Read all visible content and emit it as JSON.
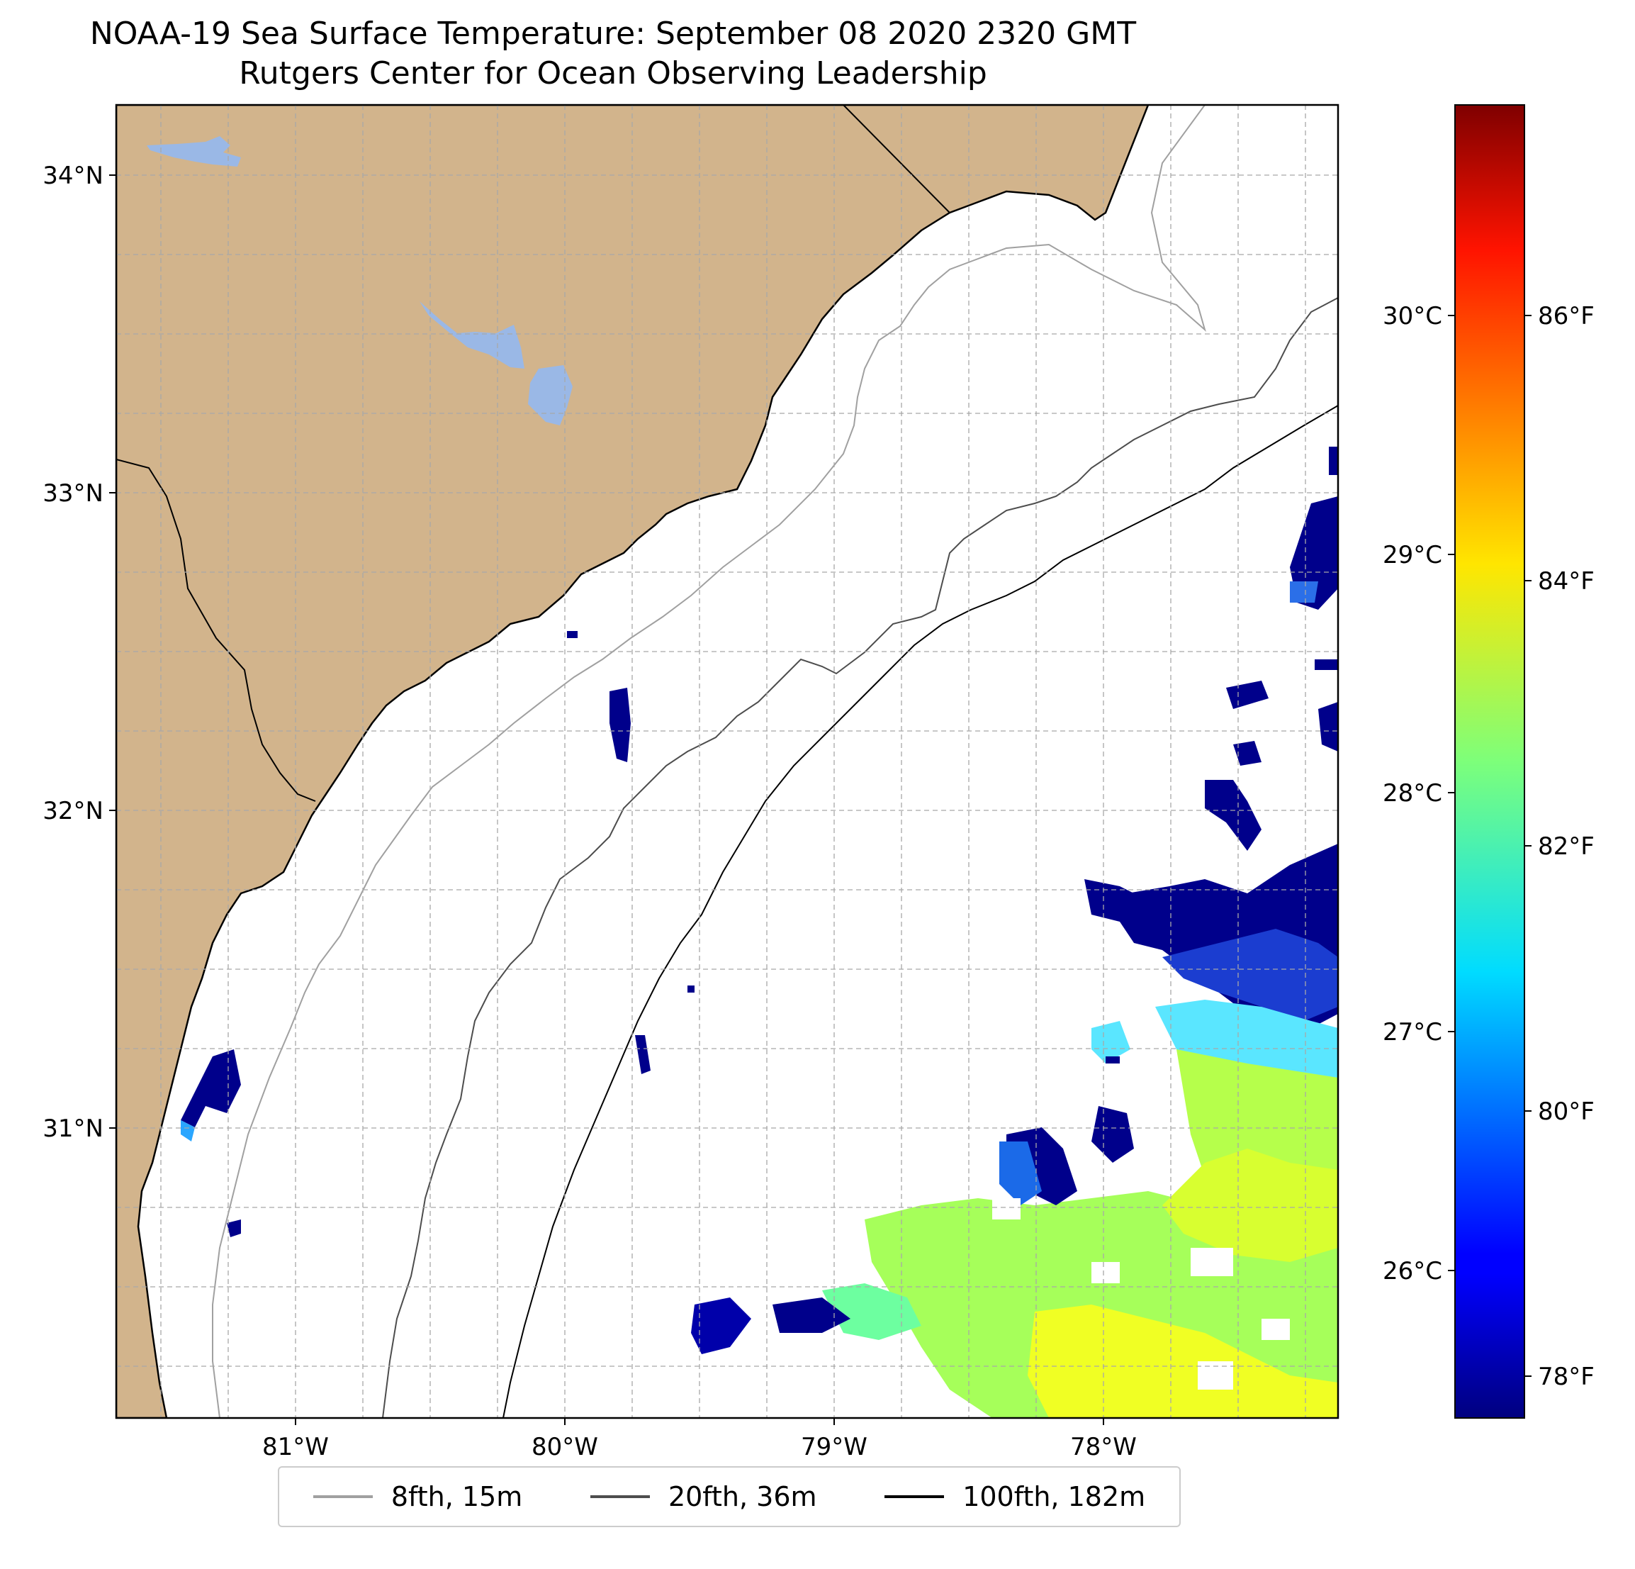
{
  "title": "NOAA-19 Sea Surface Temperature: September 08 2020 2320 GMT",
  "subtitle": "Rutgers Center for Ocean Observing Leadership",
  "map": {
    "lon_range": [
      -81.67,
      -77.1
    ],
    "lat_range": [
      30.07,
      34.22
    ],
    "land_color": "#d2b48c",
    "water_body_color": "#9ab8e6",
    "gridlines": "dashed",
    "x_ticks": [
      "81°W",
      "80°W",
      "79°W",
      "78°W"
    ],
    "y_ticks": [
      "34°N",
      "33°N",
      "32°N",
      "31°N"
    ]
  },
  "colorbar": {
    "colormap": "jet",
    "range_c": [
      25.4,
      30.9
    ],
    "celsius_ticks": [
      "30°C",
      "29°C",
      "28°C",
      "27°C",
      "26°C"
    ],
    "fahrenheit_ticks": [
      "86°F",
      "84°F",
      "82°F",
      "80°F",
      "78°F"
    ]
  },
  "legend": [
    {
      "label": "8fth, 15m",
      "color": "#a0a0a0"
    },
    {
      "label": "20fth, 36m",
      "color": "#4d4d4d"
    },
    {
      "label": "100fth, 182m",
      "color": "#000000"
    }
  ]
}
